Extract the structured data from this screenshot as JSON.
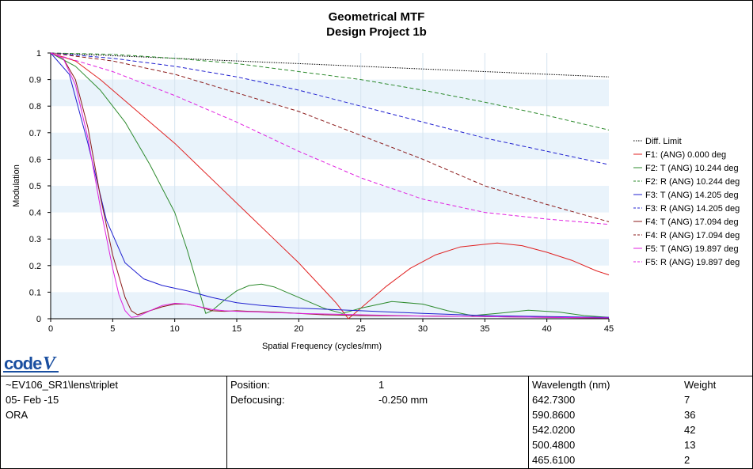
{
  "chart_data": {
    "type": "line",
    "title": "Geometrical MTF",
    "subtitle": "Design Project 1b",
    "xlabel": "Spatial Frequency (cycles/mm)",
    "ylabel": "Modulation",
    "xlim": [
      0,
      45
    ],
    "ylim": [
      0,
      1
    ],
    "x_ticks": [
      0,
      5,
      10,
      15,
      20,
      25,
      30,
      35,
      40,
      45
    ],
    "y_ticks": [
      0,
      0.1,
      0.2,
      0.3,
      0.4,
      0.5,
      0.6,
      0.7,
      0.8,
      0.9,
      1
    ],
    "grid": "alternating horizontal bands",
    "legend_position": "right",
    "series": [
      {
        "name": "Diff. Limit",
        "color": "#000000",
        "dash": "dotted",
        "points": [
          [
            0,
            1
          ],
          [
            5,
            0.99
          ],
          [
            10,
            0.98
          ],
          [
            15,
            0.97
          ],
          [
            20,
            0.96
          ],
          [
            25,
            0.95
          ],
          [
            30,
            0.94
          ],
          [
            35,
            0.93
          ],
          [
            40,
            0.92
          ],
          [
            45,
            0.91
          ]
        ]
      },
      {
        "name": "F1: (ANG) 0.000 deg",
        "color": "#e02020",
        "dash": "solid",
        "points": [
          [
            0,
            1
          ],
          [
            2,
            0.97
          ],
          [
            4,
            0.9
          ],
          [
            6,
            0.82
          ],
          [
            8,
            0.74
          ],
          [
            10,
            0.66
          ],
          [
            12,
            0.57
          ],
          [
            14,
            0.48
          ],
          [
            16,
            0.39
          ],
          [
            18,
            0.3
          ],
          [
            20,
            0.21
          ],
          [
            22,
            0.11
          ],
          [
            23,
            0.06
          ],
          [
            23.5,
            0.03
          ],
          [
            24,
            0
          ],
          [
            25,
            0.04
          ],
          [
            27,
            0.12
          ],
          [
            29,
            0.19
          ],
          [
            31,
            0.24
          ],
          [
            33,
            0.27
          ],
          [
            35,
            0.28
          ],
          [
            36,
            0.285
          ],
          [
            38,
            0.275
          ],
          [
            40,
            0.25
          ],
          [
            42,
            0.22
          ],
          [
            44,
            0.18
          ],
          [
            45,
            0.165
          ]
        ]
      },
      {
        "name": "F2: T (ANG) 10.244 deg",
        "color": "#2e8b2e",
        "dash": "solid",
        "points": [
          [
            0,
            1
          ],
          [
            2,
            0.95
          ],
          [
            4,
            0.86
          ],
          [
            6,
            0.74
          ],
          [
            8,
            0.58
          ],
          [
            10,
            0.4
          ],
          [
            11,
            0.26
          ],
          [
            12,
            0.1
          ],
          [
            12.5,
            0.02
          ],
          [
            13,
            0.03
          ],
          [
            14,
            0.07
          ],
          [
            15,
            0.105
          ],
          [
            16,
            0.125
          ],
          [
            17,
            0.13
          ],
          [
            18,
            0.12
          ],
          [
            20,
            0.08
          ],
          [
            22,
            0.04
          ],
          [
            23.5,
            0.02
          ],
          [
            25,
            0.04
          ],
          [
            27.5,
            0.065
          ],
          [
            30,
            0.055
          ],
          [
            32,
            0.03
          ],
          [
            34,
            0.012
          ],
          [
            36,
            0.02
          ],
          [
            38.5,
            0.032
          ],
          [
            41,
            0.025
          ],
          [
            43,
            0.012
          ],
          [
            45,
            0.005
          ]
        ]
      },
      {
        "name": "F2: R (ANG) 10.244 deg",
        "color": "#2e8b2e",
        "dash": "dashed",
        "points": [
          [
            0,
            1
          ],
          [
            5,
            0.995
          ],
          [
            10,
            0.98
          ],
          [
            15,
            0.96
          ],
          [
            20,
            0.93
          ],
          [
            25,
            0.9
          ],
          [
            30,
            0.86
          ],
          [
            35,
            0.815
          ],
          [
            40,
            0.765
          ],
          [
            45,
            0.71
          ]
        ]
      },
      {
        "name": "F3: T (ANG) 14.205 deg",
        "color": "#2020d0",
        "dash": "solid",
        "points": [
          [
            0,
            1
          ],
          [
            1.5,
            0.92
          ],
          [
            3,
            0.66
          ],
          [
            4.5,
            0.37
          ],
          [
            6,
            0.21
          ],
          [
            7.5,
            0.15
          ],
          [
            9,
            0.125
          ],
          [
            11,
            0.105
          ],
          [
            13,
            0.08
          ],
          [
            15,
            0.06
          ],
          [
            17,
            0.05
          ],
          [
            20,
            0.04
          ],
          [
            25,
            0.03
          ],
          [
            30,
            0.02
          ],
          [
            35,
            0.012
          ],
          [
            40,
            0.008
          ],
          [
            45,
            0.005
          ]
        ]
      },
      {
        "name": "F3: R (ANG) 14.205 deg",
        "color": "#2020d0",
        "dash": "dashed",
        "points": [
          [
            0,
            1
          ],
          [
            5,
            0.98
          ],
          [
            10,
            0.95
          ],
          [
            15,
            0.91
          ],
          [
            20,
            0.86
          ],
          [
            25,
            0.8
          ],
          [
            30,
            0.74
          ],
          [
            35,
            0.68
          ],
          [
            40,
            0.63
          ],
          [
            45,
            0.58
          ]
        ]
      },
      {
        "name": "F4: T (ANG) 17.094 deg",
        "color": "#8b1a1a",
        "dash": "solid",
        "points": [
          [
            0,
            1
          ],
          [
            1,
            0.98
          ],
          [
            2,
            0.9
          ],
          [
            3,
            0.72
          ],
          [
            4,
            0.46
          ],
          [
            5,
            0.24
          ],
          [
            6,
            0.08
          ],
          [
            6.5,
            0.03
          ],
          [
            7,
            0.015
          ],
          [
            8,
            0.03
          ],
          [
            9,
            0.045
          ],
          [
            10,
            0.055
          ],
          [
            11,
            0.055
          ],
          [
            12,
            0.045
          ],
          [
            13,
            0.03
          ],
          [
            14,
            0.028
          ],
          [
            15,
            0.03
          ],
          [
            16,
            0.028
          ],
          [
            18,
            0.025
          ],
          [
            20,
            0.02
          ],
          [
            22,
            0.015
          ],
          [
            25,
            0.012
          ],
          [
            30,
            0.01
          ],
          [
            35,
            0.008
          ],
          [
            40,
            0.005
          ],
          [
            45,
            0.003
          ]
        ]
      },
      {
        "name": "F4: R (ANG) 17.094 deg",
        "color": "#8b1a1a",
        "dash": "dashed",
        "points": [
          [
            0,
            1
          ],
          [
            5,
            0.97
          ],
          [
            10,
            0.92
          ],
          [
            15,
            0.85
          ],
          [
            20,
            0.78
          ],
          [
            25,
            0.69
          ],
          [
            30,
            0.6
          ],
          [
            35,
            0.5
          ],
          [
            40,
            0.43
          ],
          [
            45,
            0.365
          ]
        ]
      },
      {
        "name": "F5: T (ANG) 19.897 deg",
        "color": "#e020e0",
        "dash": "solid",
        "points": [
          [
            0,
            1
          ],
          [
            1,
            0.98
          ],
          [
            2,
            0.88
          ],
          [
            3,
            0.68
          ],
          [
            4,
            0.42
          ],
          [
            5,
            0.19
          ],
          [
            5.5,
            0.09
          ],
          [
            6,
            0.03
          ],
          [
            6.5,
            0.005
          ],
          [
            7,
            0.008
          ],
          [
            8,
            0.03
          ],
          [
            9,
            0.05
          ],
          [
            10,
            0.058
          ],
          [
            11,
            0.055
          ],
          [
            12,
            0.045
          ],
          [
            13,
            0.035
          ],
          [
            14,
            0.03
          ],
          [
            15,
            0.028
          ],
          [
            17,
            0.025
          ],
          [
            20,
            0.02
          ],
          [
            25,
            0.015
          ],
          [
            30,
            0.01
          ],
          [
            35,
            0.008
          ],
          [
            40,
            0.005
          ],
          [
            45,
            0.003
          ]
        ]
      },
      {
        "name": "F5: R (ANG) 19.897 deg",
        "color": "#e020e0",
        "dash": "dashed",
        "points": [
          [
            0,
            1
          ],
          [
            5,
            0.93
          ],
          [
            10,
            0.84
          ],
          [
            15,
            0.74
          ],
          [
            20,
            0.63
          ],
          [
            25,
            0.53
          ],
          [
            30,
            0.45
          ],
          [
            35,
            0.4
          ],
          [
            40,
            0.375
          ],
          [
            45,
            0.355
          ]
        ]
      }
    ]
  },
  "logo_text": "code V",
  "info": {
    "file": "~EV106_SR1\\lens\\triplet",
    "date": "05- Feb -15",
    "org": "ORA",
    "position_label": "Position:",
    "position_value": "1",
    "defocus_label": "Defocusing:",
    "defocus_value": "-0.250 mm",
    "wavelength_header": "Wavelength (nm)",
    "weight_header": "Weight",
    "wavelengths": [
      {
        "wl": "642.7300",
        "weight": "7"
      },
      {
        "wl": "590.8600",
        "weight": "36"
      },
      {
        "wl": "542.0200",
        "weight": "42"
      },
      {
        "wl": "500.4800",
        "weight": "13"
      },
      {
        "wl": "465.6100",
        "weight": "2"
      }
    ]
  }
}
